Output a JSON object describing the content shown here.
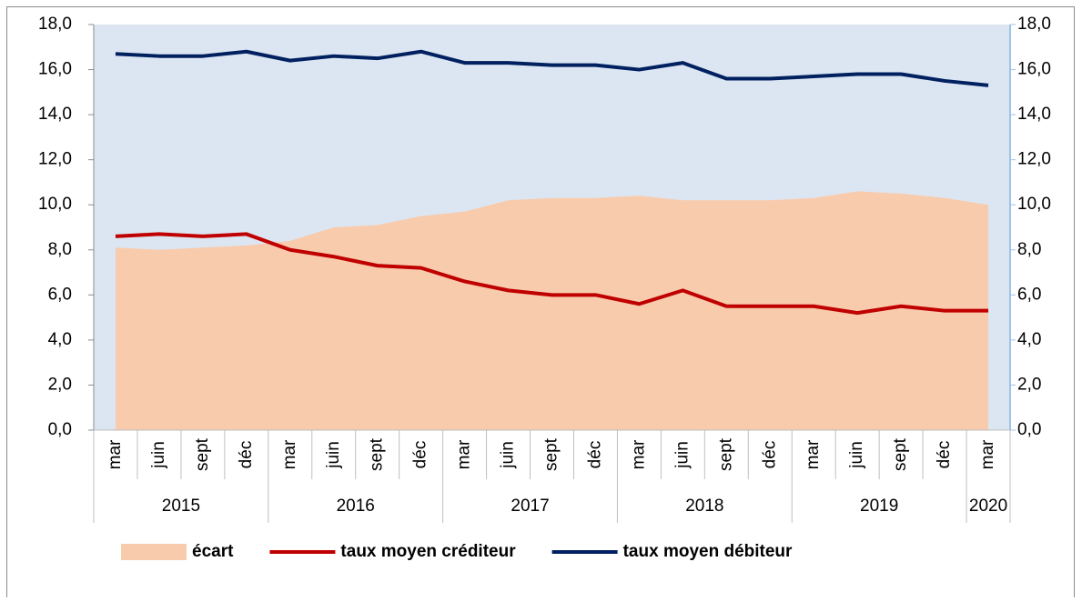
{
  "chart_data": {
    "type": "area-line",
    "categories": [
      "mar",
      "juin",
      "sept",
      "déc",
      "mar",
      "juin",
      "sept",
      "déc",
      "mar",
      "juin",
      "sept",
      "déc",
      "mar",
      "juin",
      "sept",
      "déc",
      "mar",
      "juin",
      "sept",
      "déc",
      "mar"
    ],
    "years": [
      "2015",
      null,
      null,
      null,
      "2016",
      null,
      null,
      null,
      "2017",
      null,
      null,
      null,
      "2018",
      null,
      null,
      null,
      "2019",
      null,
      null,
      null,
      "2020"
    ],
    "series": [
      {
        "name": "écart",
        "kind": "area",
        "color": "#f8cbad",
        "values": [
          8.1,
          8.0,
          8.1,
          8.2,
          8.4,
          9.0,
          9.1,
          9.5,
          9.7,
          10.2,
          10.3,
          10.3,
          10.4,
          10.2,
          10.2,
          10.2,
          10.3,
          10.6,
          10.5,
          10.3,
          10.0
        ]
      },
      {
        "name": "taux moyen créditeur",
        "kind": "line",
        "color": "#c00000",
        "values": [
          8.6,
          8.7,
          8.6,
          8.7,
          8.0,
          7.7,
          7.3,
          7.2,
          6.6,
          6.2,
          6.0,
          6.0,
          5.6,
          6.2,
          5.5,
          5.5,
          5.5,
          5.2,
          5.5,
          5.3,
          5.3
        ]
      },
      {
        "name": "taux moyen débiteur",
        "kind": "line",
        "color": "#002060",
        "values": [
          16.7,
          16.6,
          16.6,
          16.8,
          16.4,
          16.6,
          16.5,
          16.8,
          16.3,
          16.3,
          16.2,
          16.2,
          16.0,
          16.3,
          15.6,
          15.6,
          15.7,
          15.8,
          15.8,
          15.5,
          15.3
        ]
      }
    ],
    "ylim": [
      0,
      18
    ],
    "yticks": [
      {
        "value": 0,
        "label": "0,0"
      },
      {
        "value": 2,
        "label": "2,0"
      },
      {
        "value": 4,
        "label": "4,0"
      },
      {
        "value": 6,
        "label": "6,0"
      },
      {
        "value": 8,
        "label": "8,0"
      },
      {
        "value": 10,
        "label": "10,0"
      },
      {
        "value": 12,
        "label": "12,0"
      },
      {
        "value": 14,
        "label": "14,0"
      },
      {
        "value": 16,
        "label": "16,0"
      },
      {
        "value": 18,
        "label": "18,0"
      }
    ],
    "y2lim": [
      0,
      18
    ],
    "y2ticks": [
      {
        "value": 0,
        "label": "0,0"
      },
      {
        "value": 2,
        "label": "2,0"
      },
      {
        "value": 4,
        "label": "4,0"
      },
      {
        "value": 6,
        "label": "6,0"
      },
      {
        "value": 8,
        "label": "8,0"
      },
      {
        "value": 10,
        "label": "10,0"
      },
      {
        "value": 12,
        "label": "12,0"
      },
      {
        "value": 14,
        "label": "14,0"
      },
      {
        "value": 16,
        "label": "16,0"
      },
      {
        "value": 18,
        "label": "18,0"
      }
    ],
    "plot_background": "#dce6f2",
    "legend": "bottom"
  }
}
